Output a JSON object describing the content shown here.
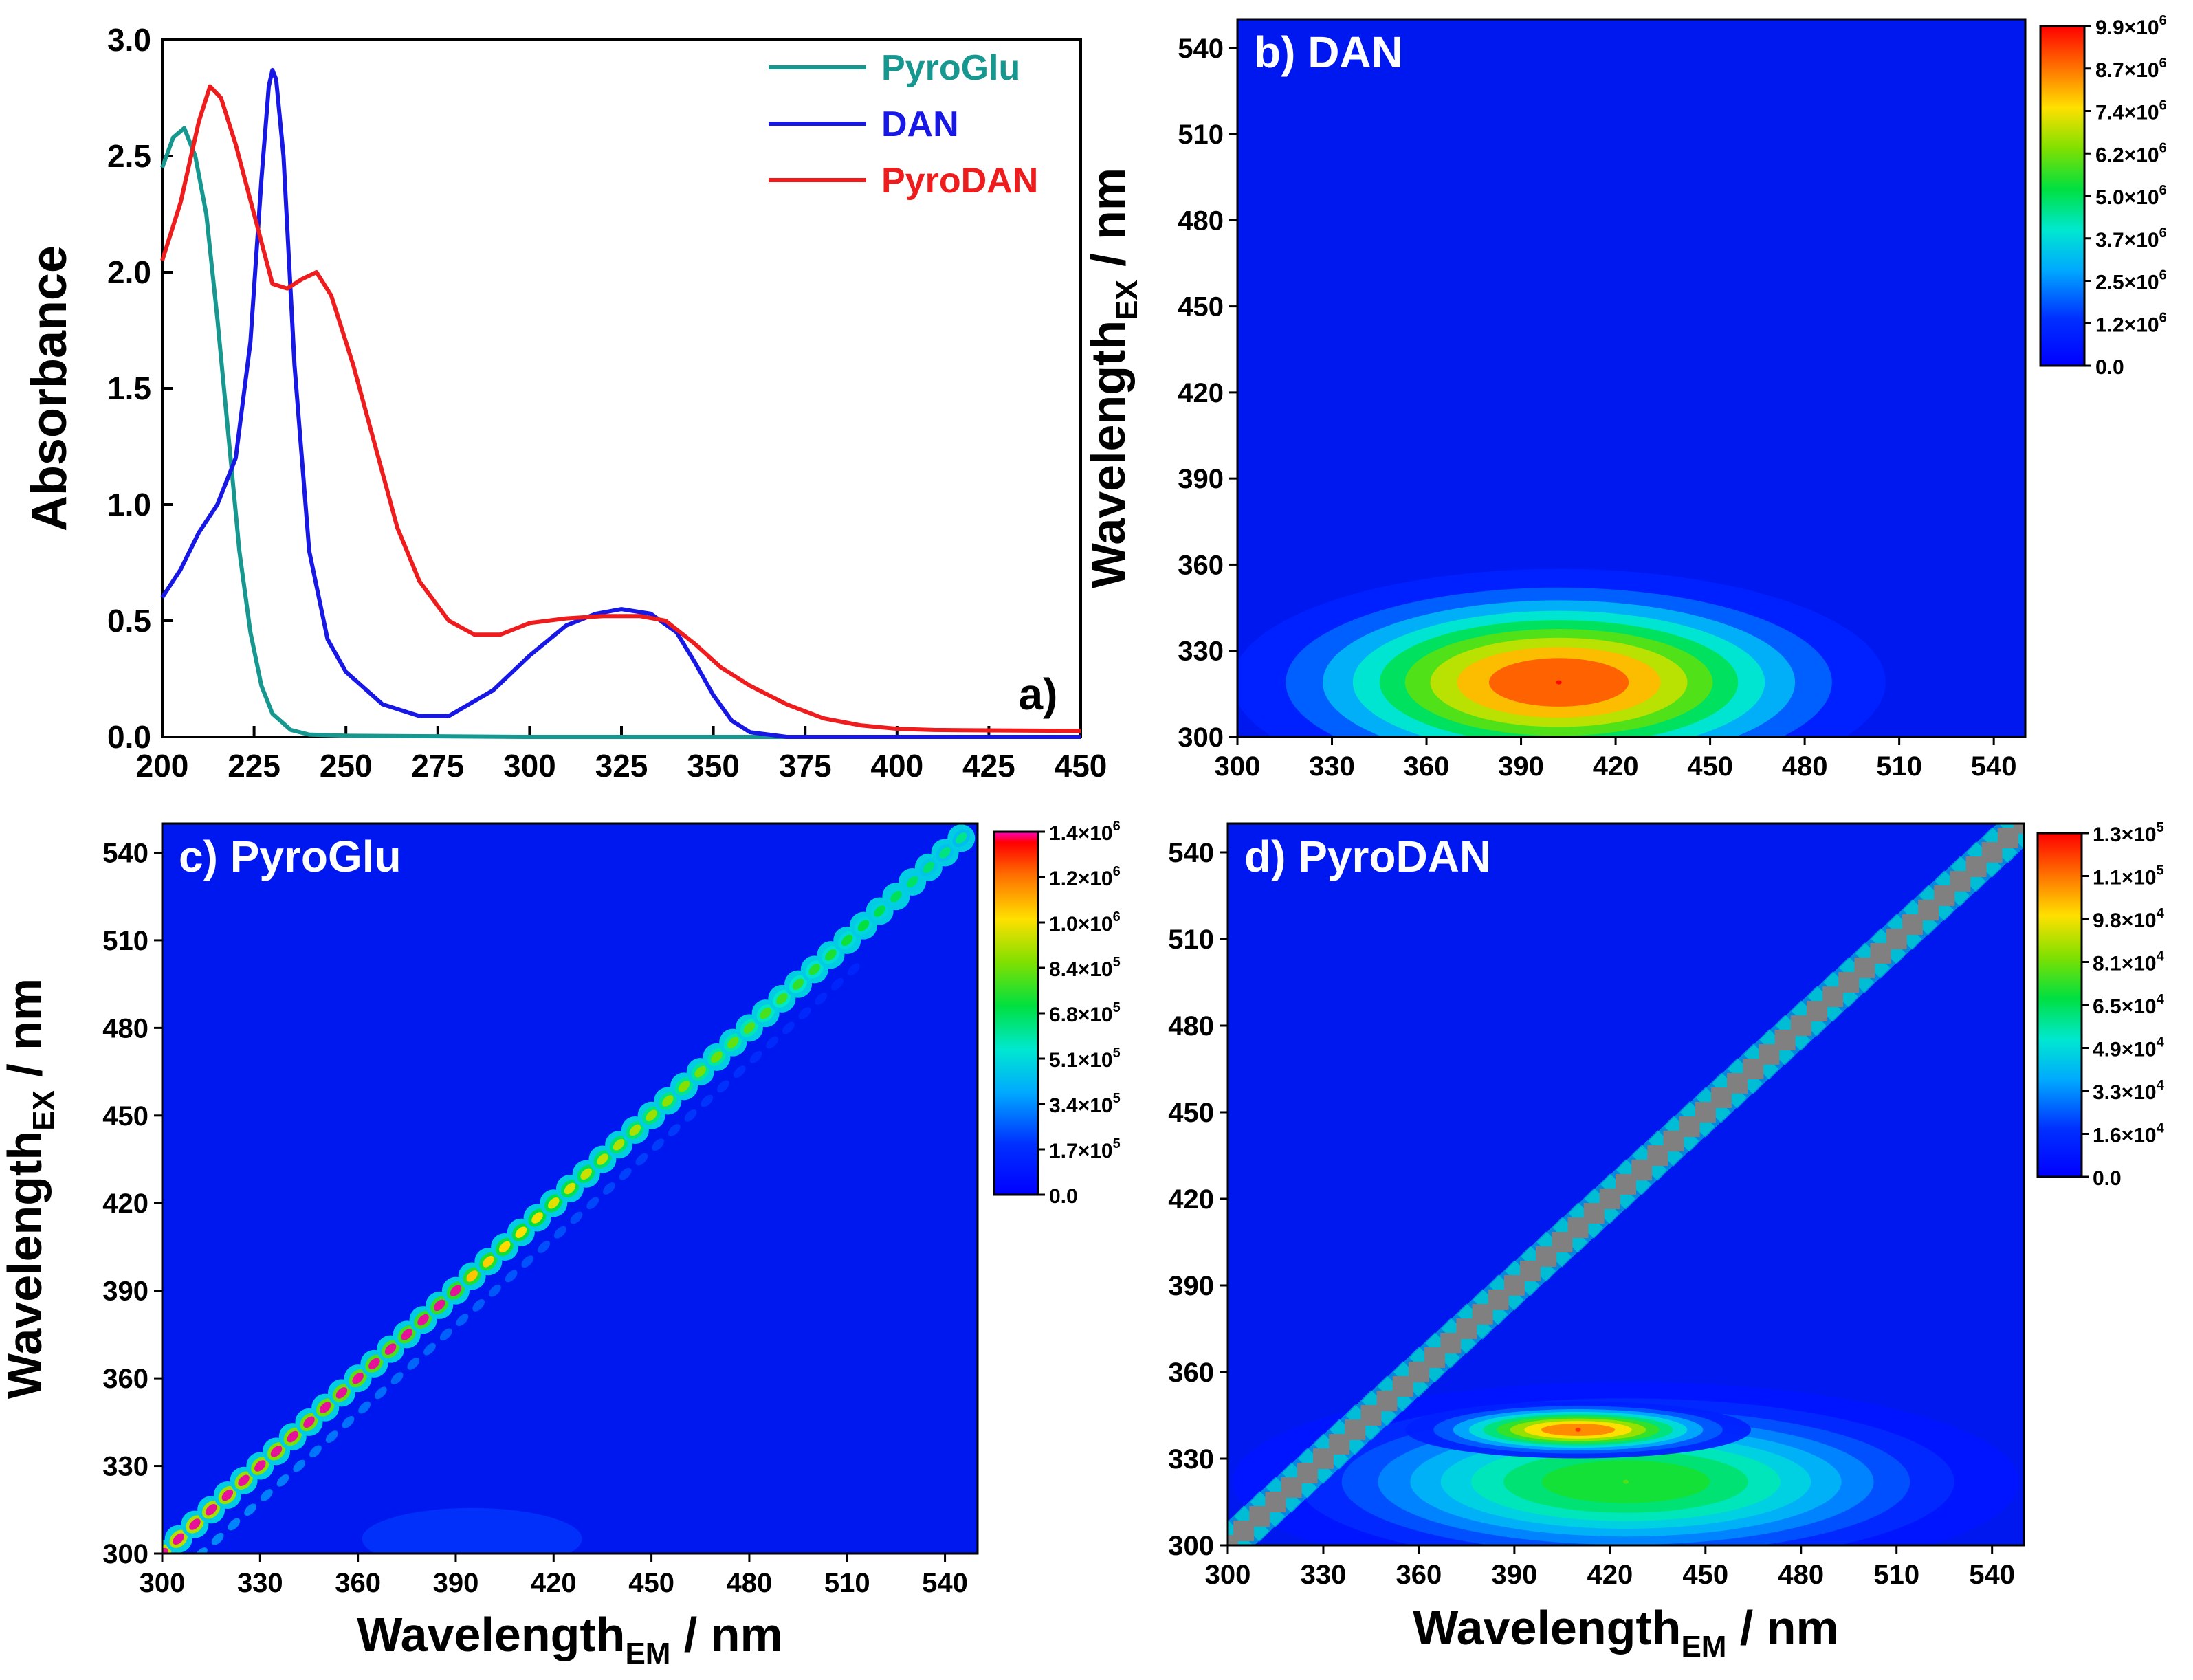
{
  "chart_data": [
    {
      "panel": "a)",
      "type": "line",
      "ylabel": "Absorbance",
      "xlim": [
        200,
        450
      ],
      "ylim": [
        0,
        3.0
      ],
      "xticks": [
        "200",
        "225",
        "250",
        "275",
        "300",
        "325",
        "350",
        "375",
        "400",
        "425",
        "450"
      ],
      "yticks": [
        "0.0",
        "0.5",
        "1.0",
        "1.5",
        "2.0",
        "2.5",
        "3.0"
      ],
      "legend_position": "top-right",
      "series": [
        {
          "name": "PyroGlu",
          "color": "#16978f",
          "points": [
            [
              200,
              2.45
            ],
            [
              203,
              2.58
            ],
            [
              206,
              2.62
            ],
            [
              209,
              2.5
            ],
            [
              212,
              2.25
            ],
            [
              215,
              1.8
            ],
            [
              218,
              1.3
            ],
            [
              221,
              0.8
            ],
            [
              224,
              0.45
            ],
            [
              227,
              0.22
            ],
            [
              230,
              0.1
            ],
            [
              235,
              0.03
            ],
            [
              240,
              0.01
            ],
            [
              250,
              0.005
            ],
            [
              300,
              0.0
            ],
            [
              350,
              0.0
            ],
            [
              400,
              0.0
            ],
            [
              450,
              0.0
            ]
          ]
        },
        {
          "name": "DAN",
          "color": "#1818e6",
          "points": [
            [
              200,
              0.6
            ],
            [
              205,
              0.72
            ],
            [
              210,
              0.88
            ],
            [
              215,
              1.0
            ],
            [
              220,
              1.2
            ],
            [
              224,
              1.7
            ],
            [
              227,
              2.4
            ],
            [
              229,
              2.8
            ],
            [
              230,
              2.87
            ],
            [
              231,
              2.83
            ],
            [
              233,
              2.5
            ],
            [
              236,
              1.6
            ],
            [
              240,
              0.8
            ],
            [
              245,
              0.42
            ],
            [
              250,
              0.28
            ],
            [
              260,
              0.14
            ],
            [
              270,
              0.09
            ],
            [
              278,
              0.09
            ],
            [
              290,
              0.2
            ],
            [
              300,
              0.35
            ],
            [
              310,
              0.48
            ],
            [
              318,
              0.53
            ],
            [
              325,
              0.55
            ],
            [
              333,
              0.53
            ],
            [
              340,
              0.45
            ],
            [
              345,
              0.32
            ],
            [
              350,
              0.18
            ],
            [
              355,
              0.07
            ],
            [
              360,
              0.02
            ],
            [
              370,
              0.0
            ],
            [
              400,
              0.0
            ],
            [
              450,
              0.0
            ]
          ]
        },
        {
          "name": "PyroDAN",
          "color": "#ee1c1c",
          "points": [
            [
              200,
              2.05
            ],
            [
              205,
              2.3
            ],
            [
              210,
              2.65
            ],
            [
              213,
              2.8
            ],
            [
              216,
              2.75
            ],
            [
              220,
              2.55
            ],
            [
              225,
              2.25
            ],
            [
              230,
              1.95
            ],
            [
              234,
              1.93
            ],
            [
              238,
              1.97
            ],
            [
              242,
              2.0
            ],
            [
              246,
              1.9
            ],
            [
              252,
              1.6
            ],
            [
              258,
              1.25
            ],
            [
              264,
              0.9
            ],
            [
              270,
              0.67
            ],
            [
              278,
              0.5
            ],
            [
              285,
              0.44
            ],
            [
              292,
              0.44
            ],
            [
              300,
              0.49
            ],
            [
              310,
              0.51
            ],
            [
              320,
              0.52
            ],
            [
              330,
              0.52
            ],
            [
              337,
              0.5
            ],
            [
              345,
              0.4
            ],
            [
              352,
              0.3
            ],
            [
              360,
              0.22
            ],
            [
              370,
              0.14
            ],
            [
              380,
              0.08
            ],
            [
              390,
              0.05
            ],
            [
              400,
              0.035
            ],
            [
              410,
              0.03
            ],
            [
              425,
              0.028
            ],
            [
              450,
              0.026
            ]
          ]
        }
      ]
    },
    {
      "panel": "b) DAN",
      "type": "heatmap",
      "ylabel_main": "Wavelength",
      "ylabel_sub": "EX",
      "ylabel_unit": " / nm",
      "xlim": [
        300,
        550
      ],
      "ylim": [
        300,
        550
      ],
      "xticks": [
        "300",
        "330",
        "360",
        "390",
        "420",
        "450",
        "480",
        "510",
        "540"
      ],
      "yticks": [
        "300",
        "330",
        "360",
        "390",
        "420",
        "450",
        "480",
        "510",
        "540"
      ],
      "colorbar": [
        {
          "m": "0.0",
          "e": ""
        },
        {
          "m": "1.2×10",
          "e": "6"
        },
        {
          "m": "2.5×10",
          "e": "6"
        },
        {
          "m": "3.7×10",
          "e": "6"
        },
        {
          "m": "5.0×10",
          "e": "6"
        },
        {
          "m": "6.2×10",
          "e": "6"
        },
        {
          "m": "7.4×10",
          "e": "6"
        },
        {
          "m": "8.7×10",
          "e": "6"
        },
        {
          "m": "9.9×10",
          "e": "6"
        }
      ],
      "features": [
        {
          "kind": "blob",
          "em": 402,
          "ex": 319,
          "sx": 42,
          "sy": 16,
          "peak": 1.0
        }
      ]
    },
    {
      "panel": "c) PyroGlu",
      "type": "heatmap",
      "xlabel_main": "Wavelength",
      "xlabel_sub": "EM",
      "xlabel_unit": " / nm",
      "ylabel_main": "Wavelength",
      "ylabel_sub": "EX",
      "ylabel_unit": " / nm",
      "xlim": [
        300,
        550
      ],
      "ylim": [
        300,
        550
      ],
      "xticks": [
        "300",
        "330",
        "360",
        "390",
        "420",
        "450",
        "480",
        "510",
        "540"
      ],
      "yticks": [
        "300",
        "330",
        "360",
        "390",
        "420",
        "450",
        "480",
        "510",
        "540"
      ],
      "colorbar": [
        {
          "m": "0.0",
          "e": ""
        },
        {
          "m": "1.7×10",
          "e": "5"
        },
        {
          "m": "3.4×10",
          "e": "5"
        },
        {
          "m": "5.1×10",
          "e": "5"
        },
        {
          "m": "6.8×10",
          "e": "5"
        },
        {
          "m": "8.4×10",
          "e": "5"
        },
        {
          "m": "1.0×10",
          "e": "6"
        },
        {
          "m": "1.2×10",
          "e": "6"
        },
        {
          "m": "1.4×10",
          "e": "6"
        }
      ],
      "features": [
        {
          "kind": "rayleigh",
          "offset": 0,
          "peak_low": 1.0,
          "peak_high": 0.45
        },
        {
          "kind": "raman",
          "offset": 12,
          "peak": 0.18
        }
      ]
    },
    {
      "panel": "d) PyroDAN",
      "type": "heatmap",
      "xlabel_main": "Wavelength",
      "xlabel_sub": "EM",
      "xlabel_unit": " / nm",
      "xlim": [
        300,
        550
      ],
      "ylim": [
        300,
        550
      ],
      "xticks": [
        "300",
        "330",
        "360",
        "390",
        "420",
        "450",
        "480",
        "510",
        "540"
      ],
      "yticks": [
        "300",
        "330",
        "360",
        "390",
        "420",
        "450",
        "480",
        "510",
        "540"
      ],
      "colorbar": [
        {
          "m": "0.0",
          "e": ""
        },
        {
          "m": "1.6×10",
          "e": "4"
        },
        {
          "m": "3.3×10",
          "e": "4"
        },
        {
          "m": "4.9×10",
          "e": "4"
        },
        {
          "m": "6.5×10",
          "e": "4"
        },
        {
          "m": "8.1×10",
          "e": "4"
        },
        {
          "m": "9.8×10",
          "e": "4"
        },
        {
          "m": "1.1×10",
          "e": "5"
        },
        {
          "m": "1.3×10",
          "e": "5"
        }
      ],
      "features": [
        {
          "kind": "blob",
          "em": 425,
          "ex": 322,
          "sx": 50,
          "sy": 14,
          "peak": 0.6
        },
        {
          "kind": "blob",
          "em": 410,
          "ex": 340,
          "sx": 22,
          "sy": 4,
          "peak": 0.95
        },
        {
          "kind": "rayleigh_grey",
          "offset": 0
        }
      ]
    }
  ]
}
